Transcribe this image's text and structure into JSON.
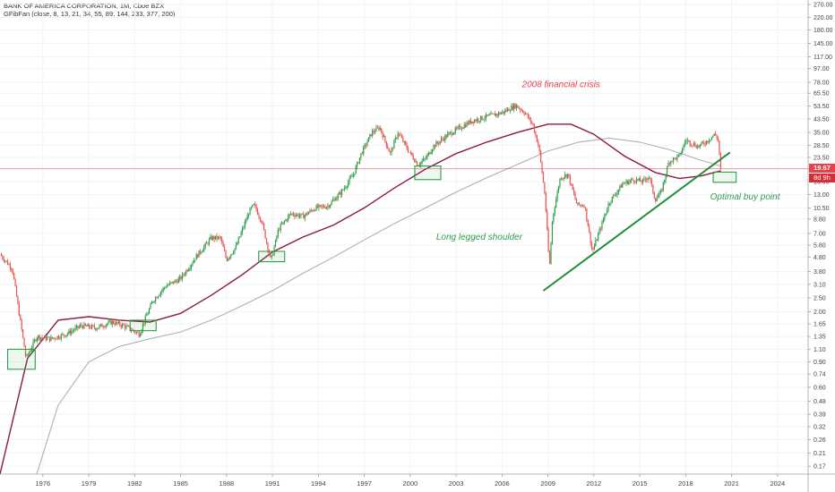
{
  "header": {
    "title": "BANK OF AMERICA CORPORATION, 1M, Cboe BZX",
    "indicator": "GFibFan (close, 8, 13, 21, 34, 55, 89, 144, 233, 377, 200)"
  },
  "price_tag": {
    "value": "19.67",
    "countdown": "8d 9h"
  },
  "colors": {
    "up": "#26a69a",
    "up_green": "#2e9e4a",
    "down": "#ef5350",
    "ma_fast": "#8b1a3e",
    "ma_slow": "#b0b0b0",
    "trendline": "#1f8f3a",
    "price_line": "#e8414a",
    "annotation_red": "#e8414a",
    "annotation_green": "#2e9e4a"
  },
  "annotations": {
    "crisis": "2008 financial crisis",
    "shoulder": "Long legged shoulder",
    "buy": "Optimal buy point"
  },
  "chart_data": {
    "type": "candlestick",
    "title": "BANK OF AMERICA CORPORATION, 1M, Cboe BZX",
    "y_scale": "log",
    "ylim": [
      0.15,
      290
    ],
    "x_range": [
      1973.2,
      2026.0
    ],
    "x_ticks": [
      "1976",
      "1979",
      "1982",
      "1985",
      "1988",
      "1991",
      "1994",
      "1997",
      "2000",
      "2003",
      "2006",
      "2009",
      "2012",
      "2015",
      "2018",
      "2021",
      "2024"
    ],
    "y_ticks": [
      "270.00",
      "220.00",
      "180.00",
      "145.00",
      "117.00",
      "97.00",
      "78.00",
      "65.50",
      "53.50",
      "43.50",
      "35.00",
      "28.50",
      "23.50",
      "19.50",
      "16.00",
      "13.00",
      "10.50",
      "8.80",
      "7.00",
      "5.80",
      "4.80",
      "3.80",
      "3.10",
      "2.50",
      "2.00",
      "1.65",
      "1.35",
      "1.10",
      "0.90",
      "0.74",
      "0.60",
      "0.48",
      "0.39",
      "0.32",
      "0.26",
      "0.21",
      "0.17"
    ],
    "price_keypoints": [
      [
        1973.2,
        5.0
      ],
      [
        1974.0,
        4.0
      ],
      [
        1974.5,
        1.8
      ],
      [
        1974.9,
        0.95
      ],
      [
        1975.6,
        1.35
      ],
      [
        1976.5,
        1.3
      ],
      [
        1977.5,
        1.4
      ],
      [
        1978.5,
        1.6
      ],
      [
        1979.5,
        1.55
      ],
      [
        1980.5,
        1.7
      ],
      [
        1981.3,
        1.6
      ],
      [
        1982.3,
        1.4
      ],
      [
        1982.6,
        1.7
      ],
      [
        1983.2,
        2.4
      ],
      [
        1984.0,
        3.0
      ],
      [
        1985.0,
        3.4
      ],
      [
        1986.0,
        4.8
      ],
      [
        1987.0,
        6.5
      ],
      [
        1987.6,
        6.5
      ],
      [
        1988.0,
        4.6
      ],
      [
        1988.6,
        5.6
      ],
      [
        1989.5,
        10.0
      ],
      [
        1989.8,
        11.0
      ],
      [
        1990.3,
        8.5
      ],
      [
        1990.9,
        4.5
      ],
      [
        1991.4,
        7.5
      ],
      [
        1992.2,
        9.6
      ],
      [
        1993.0,
        9.2
      ],
      [
        1993.8,
        10.5
      ],
      [
        1994.6,
        10.8
      ],
      [
        1995.5,
        13.5
      ],
      [
        1996.3,
        18.0
      ],
      [
        1996.8,
        25.0
      ],
      [
        1997.5,
        35.0
      ],
      [
        1998.0,
        38.0
      ],
      [
        1998.7,
        25.0
      ],
      [
        1999.2,
        35.0
      ],
      [
        1999.9,
        26.0
      ],
      [
        2000.5,
        21.0
      ],
      [
        2001.0,
        23.0
      ],
      [
        2001.5,
        28.0
      ],
      [
        2002.5,
        34.0
      ],
      [
        2003.3,
        38.0
      ],
      [
        2004.0,
        42.0
      ],
      [
        2005.0,
        45.0
      ],
      [
        2006.0,
        48.0
      ],
      [
        2006.9,
        54.0
      ],
      [
        2007.5,
        48.0
      ],
      [
        2008.0,
        40.0
      ],
      [
        2008.4,
        28.0
      ],
      [
        2008.8,
        13.0
      ],
      [
        2009.1,
        4.0
      ],
      [
        2009.3,
        9.0
      ],
      [
        2009.8,
        17.0
      ],
      [
        2010.3,
        18.0
      ],
      [
        2010.9,
        11.0
      ],
      [
        2011.4,
        11.0
      ],
      [
        2011.9,
        5.2
      ],
      [
        2012.5,
        8.0
      ],
      [
        2013.0,
        11.5
      ],
      [
        2013.9,
        15.5
      ],
      [
        2014.6,
        16.5
      ],
      [
        2015.2,
        16.0
      ],
      [
        2015.6,
        17.5
      ],
      [
        2016.0,
        12.0
      ],
      [
        2016.4,
        13.5
      ],
      [
        2016.9,
        22.0
      ],
      [
        2017.6,
        24.0
      ],
      [
        2018.0,
        31.0
      ],
      [
        2018.8,
        28.0
      ],
      [
        2019.3,
        30.0
      ],
      [
        2019.9,
        34.0
      ],
      [
        2020.1,
        32.0
      ],
      [
        2020.3,
        19.67
      ]
    ],
    "series": [
      {
        "type": "line",
        "points": [
          [
            1973.2,
            0.15
          ],
          [
            1975.0,
            0.95
          ],
          [
            1977.0,
            1.75
          ],
          [
            1979.0,
            1.85
          ],
          [
            1981.0,
            1.75
          ],
          [
            1983.0,
            1.7
          ],
          [
            1985.0,
            1.95
          ],
          [
            1987.0,
            2.6
          ],
          [
            1989.0,
            3.6
          ],
          [
            1991.0,
            5.2
          ],
          [
            1993.0,
            6.6
          ],
          [
            1995.0,
            8.0
          ],
          [
            1997.0,
            10.5
          ],
          [
            1999.0,
            14.5
          ],
          [
            2001.0,
            19.5
          ],
          [
            2003.0,
            25.0
          ],
          [
            2005.0,
            30.0
          ],
          [
            2007.0,
            35.0
          ],
          [
            2009.0,
            40.0
          ],
          [
            2010.5,
            40.0
          ],
          [
            2012.0,
            34.0
          ],
          [
            2014.0,
            24.0
          ],
          [
            2016.0,
            18.5
          ],
          [
            2017.6,
            16.8
          ],
          [
            2019.0,
            17.5
          ],
          [
            2020.3,
            19.0
          ]
        ]
      },
      {
        "type": "line",
        "points": [
          [
            1975.6,
            0.15
          ],
          [
            1977.0,
            0.45
          ],
          [
            1979.0,
            0.9
          ],
          [
            1981.0,
            1.15
          ],
          [
            1983.0,
            1.3
          ],
          [
            1985.0,
            1.45
          ],
          [
            1987.0,
            1.75
          ],
          [
            1989.0,
            2.2
          ],
          [
            1991.0,
            2.8
          ],
          [
            1993.0,
            3.7
          ],
          [
            1995.0,
            4.8
          ],
          [
            1997.0,
            6.3
          ],
          [
            1999.0,
            8.2
          ],
          [
            2001.0,
            10.5
          ],
          [
            2003.0,
            13.5
          ],
          [
            2005.0,
            17.0
          ],
          [
            2007.0,
            21.0
          ],
          [
            2009.0,
            26.0
          ],
          [
            2011.0,
            30.0
          ],
          [
            2013.0,
            32.0
          ],
          [
            2015.0,
            30.0
          ],
          [
            2017.0,
            26.5
          ],
          [
            2019.0,
            22.5
          ],
          [
            2020.3,
            20.5
          ]
        ]
      },
      {
        "type": "trendline",
        "points": [
          [
            2008.7,
            2.8
          ],
          [
            2020.9,
            25.5
          ]
        ]
      }
    ],
    "highlight_boxes": [
      {
        "x": [
          1973.7,
          1975.5
        ],
        "y": [
          0.8,
          1.1
        ]
      },
      {
        "x": [
          1981.7,
          1983.4
        ],
        "y": [
          1.48,
          1.75
        ]
      },
      {
        "x": [
          1990.1,
          1991.8
        ],
        "y": [
          4.45,
          5.25
        ]
      },
      {
        "x": [
          2000.3,
          2002.0
        ],
        "y": [
          16.5,
          20.5
        ]
      },
      {
        "x": [
          2019.8,
          2021.3
        ],
        "y": [
          15.8,
          18.6
        ]
      }
    ],
    "price_line": 19.67,
    "annotation_positions": {
      "crisis": [
        2007.3,
        72.0
      ],
      "shoulder": [
        2001.7,
        6.3
      ],
      "buy": [
        2019.6,
        12.0
      ]
    }
  }
}
